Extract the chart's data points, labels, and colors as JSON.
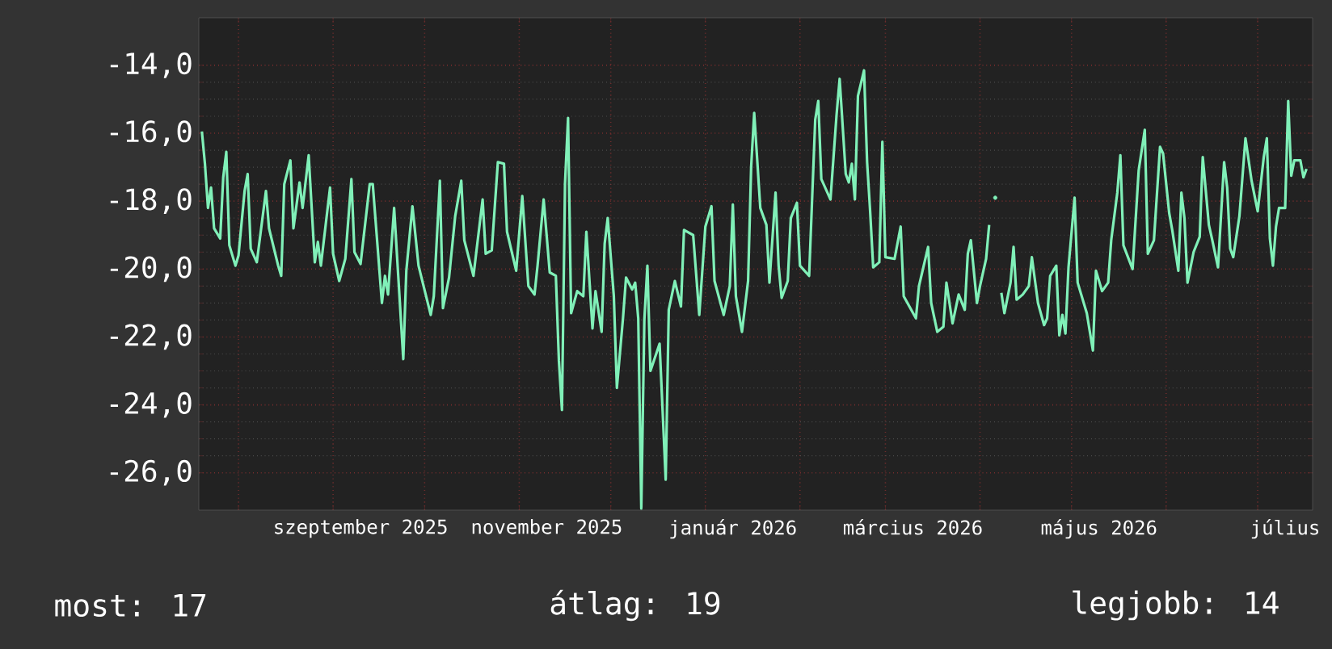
{
  "chart_data": {
    "type": "line",
    "color": "#80f0b8",
    "grid": true,
    "xlim": [
      "2025-07-19",
      "2026-07-19"
    ],
    "xticks": [
      {
        "value": "2025-08-01",
        "label": null
      },
      {
        "value": "2025-09-01",
        "label": null
      },
      {
        "value": "2025-10-01",
        "label": null
      },
      {
        "value": "2025-11-01",
        "label": null
      },
      {
        "value": "2025-12-01",
        "label": null
      },
      {
        "value": "2026-01-01",
        "label": null
      },
      {
        "value": "2026-02-01",
        "label": null
      },
      {
        "value": "2026-03-01",
        "label": null
      },
      {
        "value": "2026-04-01",
        "label": null
      },
      {
        "value": "2026-05-01",
        "label": null
      },
      {
        "value": "2026-06-01",
        "label": null
      },
      {
        "value": "2026-07-01",
        "label": null
      },
      {
        "value": "2025-09-10",
        "label": "szeptember 2025"
      },
      {
        "value": "2025-11-10",
        "label": "november 2025"
      },
      {
        "value": "2026-01-10",
        "label": "január 2026"
      },
      {
        "value": "2026-03-10",
        "label": "március 2026"
      },
      {
        "value": "2026-05-10",
        "label": "május 2026"
      },
      {
        "value": "2026-07-10",
        "label": "július"
      }
    ],
    "ylim": [
      -27.1,
      -12.6
    ],
    "yticks": [
      {
        "value": -14,
        "label": "-14,0"
      },
      {
        "value": -16,
        "label": "-16,0"
      },
      {
        "value": -18,
        "label": "-18,0"
      },
      {
        "value": -20,
        "label": "-20,0"
      },
      {
        "value": -22,
        "label": "-22,0"
      },
      {
        "value": -24,
        "label": "-24,0"
      },
      {
        "value": -26,
        "label": "-26,0"
      }
    ],
    "annotations": [
      "most: 17",
      "átlag: 19",
      "legjobb: 14"
    ],
    "x": [
      "2025-07-20",
      "2025-07-21",
      "2025-07-22",
      "2025-07-23",
      "2025-07-24",
      "2025-07-26",
      "2025-07-27",
      "2025-07-28",
      "2025-07-29",
      "2025-07-31",
      "2025-08-01",
      "2025-08-03",
      "2025-08-04",
      "2025-08-05",
      "2025-08-07",
      "2025-08-10",
      "2025-08-11",
      "2025-08-14",
      "2025-08-15",
      "2025-08-16",
      "2025-08-18",
      "2025-08-19",
      "2025-08-21",
      "2025-08-22",
      "2025-08-24",
      "2025-08-26",
      "2025-08-27",
      "2025-08-28",
      "2025-08-31",
      "2025-09-01",
      "2025-09-03",
      "2025-09-05",
      "2025-09-07",
      "2025-09-08",
      "2025-09-10",
      "2025-09-13",
      "2025-09-14",
      "2025-09-17",
      "2025-09-18",
      "2025-09-19",
      "2025-09-21",
      "2025-09-24",
      "2025-09-25",
      "2025-09-27",
      "2025-09-29",
      "2025-10-03",
      "2025-10-04",
      "2025-10-06",
      "2025-10-07",
      "2025-10-09",
      "2025-10-11",
      "2025-10-13",
      "2025-10-14",
      "2025-10-17",
      "2025-10-20",
      "2025-10-21",
      "2025-10-23",
      "2025-10-25",
      "2025-10-27",
      "2025-10-28",
      "2025-10-31",
      "2025-11-02",
      "2025-11-04",
      "2025-11-06",
      "2025-11-07",
      "2025-11-09",
      "2025-11-11",
      "2025-11-13",
      "2025-11-14",
      "2025-11-15",
      "2025-11-16",
      "2025-11-17",
      "2025-11-18",
      "2025-11-20",
      "2025-11-22",
      "2025-11-23",
      "2025-11-25",
      "2025-11-26",
      "2025-11-28",
      "2025-11-29",
      "2025-11-30",
      "2025-12-02",
      "2025-12-03",
      "2025-12-05",
      "2025-12-06",
      "2025-12-08",
      "2025-12-09",
      "2025-12-10",
      "2025-12-11",
      "2025-12-12",
      "2025-12-13",
      "2025-12-14",
      "2025-12-17",
      "2025-12-19",
      "2025-12-20",
      "2025-12-22",
      "2025-12-24",
      "2025-12-25",
      "2025-12-28",
      "2025-12-30",
      "2026-01-01",
      "2026-01-03",
      "2026-01-04",
      "2026-01-07",
      "2026-01-09",
      "2026-01-10",
      "2026-01-11",
      "2026-01-13",
      "2026-01-15",
      "2026-01-16",
      "2026-01-17",
      "2026-01-19",
      "2026-01-21",
      "2026-01-22",
      "2026-01-24",
      "2026-01-25",
      "2026-01-26",
      "2026-01-28",
      "2026-01-29",
      "2026-01-31",
      "2026-02-01",
      "2026-02-04",
      "2026-02-06",
      "2026-02-07",
      "2026-02-08",
      "2026-02-11",
      "2026-02-13",
      "2026-02-14",
      "2026-02-16",
      "2026-02-17",
      "2026-02-18",
      "2026-02-19",
      "2026-02-20",
      "2026-02-22",
      "2026-02-23",
      "2026-02-24",
      "2026-02-25",
      "2026-02-27",
      "2026-02-28",
      "2026-03-01",
      "2026-03-04",
      "2026-03-06",
      "2026-03-07",
      "2026-03-11",
      "2026-03-12",
      "2026-03-15",
      "2026-03-16",
      "2026-03-18",
      "2026-03-20",
      "2026-03-21",
      "2026-03-23",
      "2026-03-25",
      "2026-03-27",
      "2026-03-28",
      "2026-03-29",
      "2026-03-31",
      "2026-04-01",
      "2026-04-03",
      "2026-04-04",
      "2026-04-05",
      "2026-04-06",
      "2026-04-07",
      "2026-04-08",
      "2026-04-09",
      "2026-04-11",
      "2026-04-12",
      "2026-04-13",
      "2026-04-15",
      "2026-04-17",
      "2026-04-18",
      "2026-04-20",
      "2026-04-22",
      "2026-04-23",
      "2026-04-24",
      "2026-04-26",
      "2026-04-27",
      "2026-04-28",
      "2026-04-29",
      "2026-04-30",
      "2026-05-02",
      "2026-05-03",
      "2026-05-06",
      "2026-05-08",
      "2026-05-09",
      "2026-05-11",
      "2026-05-13",
      "2026-05-14",
      "2026-05-16",
      "2026-05-17",
      "2026-05-18",
      "2026-05-21",
      "2026-05-23",
      "2026-05-25",
      "2026-05-26",
      "2026-05-28",
      "2026-05-30",
      "2026-05-31",
      "2026-06-02",
      "2026-06-03",
      "2026-06-05",
      "2026-06-06",
      "2026-06-07",
      "2026-06-08",
      "2026-06-10",
      "2026-06-12",
      "2026-06-13",
      "2026-06-15",
      "2026-06-16",
      "2026-06-18",
      "2026-06-20",
      "2026-06-21",
      "2026-06-22",
      "2026-06-23",
      "2026-06-25",
      "2026-06-27",
      "2026-06-29",
      "2026-07-01",
      "2026-07-03",
      "2026-07-04",
      "2026-07-05",
      "2026-07-06",
      "2026-07-07",
      "2026-07-08",
      "2026-07-10",
      "2026-07-11",
      "2026-07-12",
      "2026-07-13",
      "2026-07-15",
      "2026-07-16",
      "2026-07-17"
    ],
    "values": [
      -15.95,
      -16.9,
      -18.2,
      -17.6,
      -18.8,
      -19.1,
      -17.3,
      -16.55,
      -19.3,
      -19.9,
      -19.6,
      -17.7,
      -17.2,
      -19.4,
      -19.8,
      -17.7,
      -18.8,
      -19.9,
      -20.2,
      -17.5,
      -16.8,
      -18.8,
      -17.45,
      -18.2,
      -16.65,
      -19.8,
      -19.2,
      -19.9,
      -17.6,
      -19.55,
      -20.35,
      -19.7,
      -17.35,
      -19.5,
      -19.85,
      -17.5,
      -17.5,
      -21.0,
      -20.2,
      -20.75,
      -18.2,
      -22.65,
      -20.05,
      -18.15,
      -19.9,
      -21.35,
      -20.8,
      -17.4,
      -21.15,
      -20.25,
      -18.45,
      -17.4,
      -19.15,
      -20.2,
      -17.95,
      -19.55,
      -19.45,
      -16.85,
      -16.9,
      -18.9,
      -20.05,
      -17.85,
      -20.5,
      -20.75,
      -19.9,
      -17.95,
      -20.1,
      -20.2,
      -22.7,
      -24.15,
      -17.5,
      -15.55,
      -21.3,
      -20.65,
      -20.8,
      -18.9,
      -21.75,
      -20.65,
      -21.85,
      -19.25,
      -18.5,
      -20.8,
      -23.5,
      -21.45,
      -20.25,
      -20.6,
      -20.4,
      -21.45,
      -27.05,
      -21.5,
      -19.9,
      -23.0,
      -22.2,
      -26.2,
      -21.2,
      -20.35,
      -21.1,
      -18.85,
      -19.0,
      -21.35,
      -18.75,
      -18.15,
      -20.35,
      -21.35,
      -20.5,
      -18.1,
      -20.8,
      -21.85,
      -20.35,
      -17.0,
      -15.4,
      -18.2,
      -18.7,
      -20.4,
      -17.75,
      -19.9,
      -20.85,
      -20.35,
      -18.5,
      -18.05,
      -19.9,
      -20.2,
      -15.6,
      -15.05,
      -17.35,
      -17.95,
      -15.45,
      -14.4,
      -17.2,
      -17.45,
      -16.9,
      -17.95,
      -14.9,
      -14.15,
      -16.85,
      -18.3,
      -19.95,
      -19.8,
      -16.25,
      -19.65,
      -19.7,
      -18.75,
      -20.8,
      -21.45,
      -20.5,
      -19.35,
      -21.0,
      -21.85,
      -21.7,
      -20.4,
      -21.6,
      -20.75,
      -21.2,
      -19.55,
      -19.15,
      -21.0,
      -20.5,
      -19.7,
      -18.7,
      null,
      -17.9,
      null,
      -20.7,
      -21.3,
      -20.4,
      -19.35,
      -20.9,
      -20.75,
      -20.5,
      -19.65,
      -21.0,
      -21.65,
      -21.45,
      -20.2,
      -19.9,
      -21.95,
      -21.35,
      -21.9,
      -19.95,
      -17.9,
      -20.4,
      -21.3,
      -22.4,
      -20.05,
      -20.65,
      -20.4,
      -19.15,
      -17.75,
      -16.65,
      -19.3,
      -20.0,
      -17.1,
      -15.9,
      -19.55,
      -19.15,
      -16.4,
      -16.6,
      -18.35,
      -18.85,
      -20.05,
      -17.75,
      -18.5,
      -20.4,
      -19.5,
      -19.05,
      -16.7,
      -18.7,
      -19.1,
      -19.95,
      -16.85,
      -17.6,
      -19.4,
      -19.65,
      -18.45,
      -16.15,
      -17.4,
      -18.3,
      -16.7,
      -16.15,
      -19.1,
      -19.9,
      -18.75,
      -18.2,
      -18.2,
      -15.05,
      -17.25,
      -16.8,
      -16.8,
      -17.3,
      -17.05
    ]
  }
}
